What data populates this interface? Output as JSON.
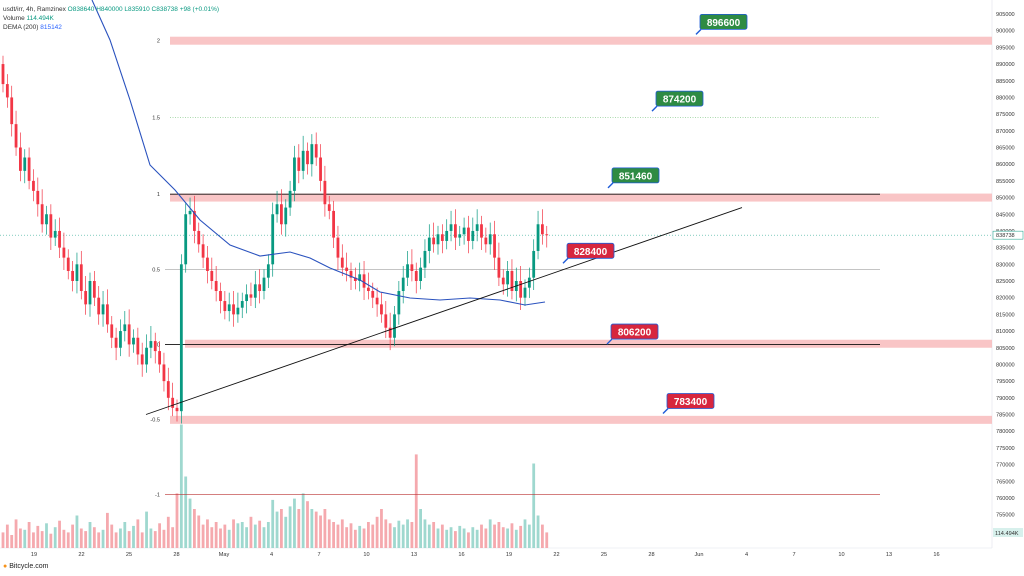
{
  "legend": {
    "symbol": "usdt/irr, 4h, Ramzinex",
    "ohlc": "O838640 H840000 L835910 C838738 +98 (+0.01%)",
    "volume_label": "Volume",
    "volume_value": "114.494K",
    "dema_label": "DEMA (200)",
    "dema_value": "815142"
  },
  "footer": "Bitcycle.com",
  "colors": {
    "up": "#089981",
    "down": "#f23645",
    "zone": "#f7b6b8",
    "dema": "#2a52be",
    "badge_green": "#2e8b43",
    "badge_red": "#d7263d",
    "volume_up": "#9fd8cf",
    "volume_down": "#f5a9ae"
  },
  "chart_data": {
    "type": "candlestick",
    "price_axis": {
      "min": 745000,
      "max": 905000,
      "ticks": [
        905000,
        900000,
        895000,
        890000,
        885000,
        880000,
        875000,
        870000,
        865000,
        860000,
        855000,
        850000,
        845000,
        840000,
        835000,
        830000,
        825000,
        820000,
        815000,
        810000,
        805000,
        800000,
        795000,
        790000,
        785000,
        780000,
        775000,
        770000,
        765000,
        760000,
        755000,
        750000
      ]
    },
    "time_axis_labels": [
      "19",
      "22",
      "25",
      "28",
      "May",
      "4",
      "7",
      "10",
      "13",
      "16",
      "19",
      "22",
      "25",
      "28",
      "Jun",
      "4",
      "7",
      "10",
      "13",
      "16"
    ],
    "last_price": "838738",
    "last_volume": "114.494K",
    "fib_levels": [
      {
        "label": "2",
        "price": 897000
      },
      {
        "label": "1.5",
        "price": 874000
      },
      {
        "label": "1",
        "price": 851000
      },
      {
        "label": "0.5",
        "price": 828500
      },
      {
        "label": "0",
        "price": 806000
      },
      {
        "label": "-0.5",
        "price": 783500
      },
      {
        "label": "-1",
        "price": 761000
      }
    ],
    "resistance_zones": [
      {
        "price": 897000,
        "badge": "896600",
        "badge_color": "green"
      },
      {
        "price": 874000,
        "badge": "874200",
        "badge_color": "green",
        "dotted": true
      },
      {
        "price": 850000,
        "badge": "851460",
        "badge_color": "green"
      },
      {
        "price": 828400,
        "badge": "828400",
        "badge_color": "red"
      },
      {
        "price": 806200,
        "badge": "806200",
        "badge_color": "red"
      },
      {
        "price": 783400,
        "badge": "783400",
        "badge_color": "red"
      }
    ],
    "trendline": {
      "from_price": 785000,
      "to_price": 847000
    },
    "candles_close": [
      884000,
      880000,
      872000,
      865000,
      858000,
      862000,
      855000,
      852000,
      848000,
      842000,
      845000,
      838000,
      840000,
      835000,
      832000,
      828000,
      825000,
      830000,
      822000,
      818000,
      825000,
      820000,
      815000,
      818000,
      812000,
      808000,
      805000,
      810000,
      812000,
      806000,
      808000,
      803000,
      800000,
      805000,
      807000,
      804000,
      800000,
      795000,
      790000,
      787000,
      786000,
      830000,
      845000,
      846000,
      840000,
      836000,
      832000,
      828000,
      825000,
      822000,
      819000,
      816000,
      818000,
      815000,
      817000,
      819000,
      821000,
      820000,
      824000,
      822000,
      826000,
      830000,
      845000,
      848000,
      842000,
      847000,
      852000,
      862000,
      858000,
      864000,
      860000,
      866000,
      862000,
      855000,
      848000,
      846000,
      838000,
      832000,
      829000,
      828000,
      826000,
      825000,
      827000,
      823000,
      822000,
      820000,
      818000,
      815000,
      811000,
      808000,
      815000,
      822000,
      826000,
      830000,
      828000,
      825000,
      829000,
      834000,
      838000,
      836000,
      839000,
      837000,
      840000,
      842000,
      838000,
      839000,
      841000,
      837000,
      840000,
      842000,
      838000,
      836000,
      839000,
      832000,
      826000,
      824000,
      828000,
      822000,
      825000,
      820000,
      823000,
      826000,
      834000,
      842000,
      839000,
      838738
    ],
    "volume_heights": [
      0.12,
      0.18,
      0.1,
      0.22,
      0.15,
      0.14,
      0.2,
      0.12,
      0.17,
      0.13,
      0.19,
      0.11,
      0.16,
      0.21,
      0.14,
      0.12,
      0.18,
      0.25,
      0.15,
      0.13,
      0.2,
      0.16,
      0.12,
      0.14,
      0.27,
      0.18,
      0.12,
      0.15,
      0.2,
      0.13,
      0.17,
      0.22,
      0.12,
      0.28,
      0.15,
      0.13,
      0.19,
      0.14,
      0.24,
      0.16,
      0.42,
      0.95,
      0.55,
      0.38,
      0.3,
      0.25,
      0.18,
      0.22,
      0.16,
      0.2,
      0.15,
      0.18,
      0.14,
      0.22,
      0.19,
      0.2,
      0.16,
      0.24,
      0.18,
      0.21,
      0.16,
      0.2,
      0.37,
      0.28,
      0.3,
      0.24,
      0.32,
      0.38,
      0.3,
      0.42,
      0.36,
      0.3,
      0.28,
      0.25,
      0.3,
      0.22,
      0.2,
      0.18,
      0.22,
      0.16,
      0.19,
      0.14,
      0.17,
      0.15,
      0.2,
      0.18,
      0.24,
      0.3,
      0.22,
      0.19,
      0.16,
      0.21,
      0.18,
      0.22,
      0.2,
      0.72,
      0.3,
      0.22,
      0.18,
      0.2,
      0.15,
      0.18,
      0.14,
      0.16,
      0.13,
      0.17,
      0.15,
      0.12,
      0.16,
      0.14,
      0.18,
      0.15,
      0.22,
      0.18,
      0.2,
      0.16,
      0.15,
      0.19,
      0.14,
      0.17,
      0.22,
      0.18,
      0.65,
      0.25,
      0.18,
      0.12
    ]
  }
}
